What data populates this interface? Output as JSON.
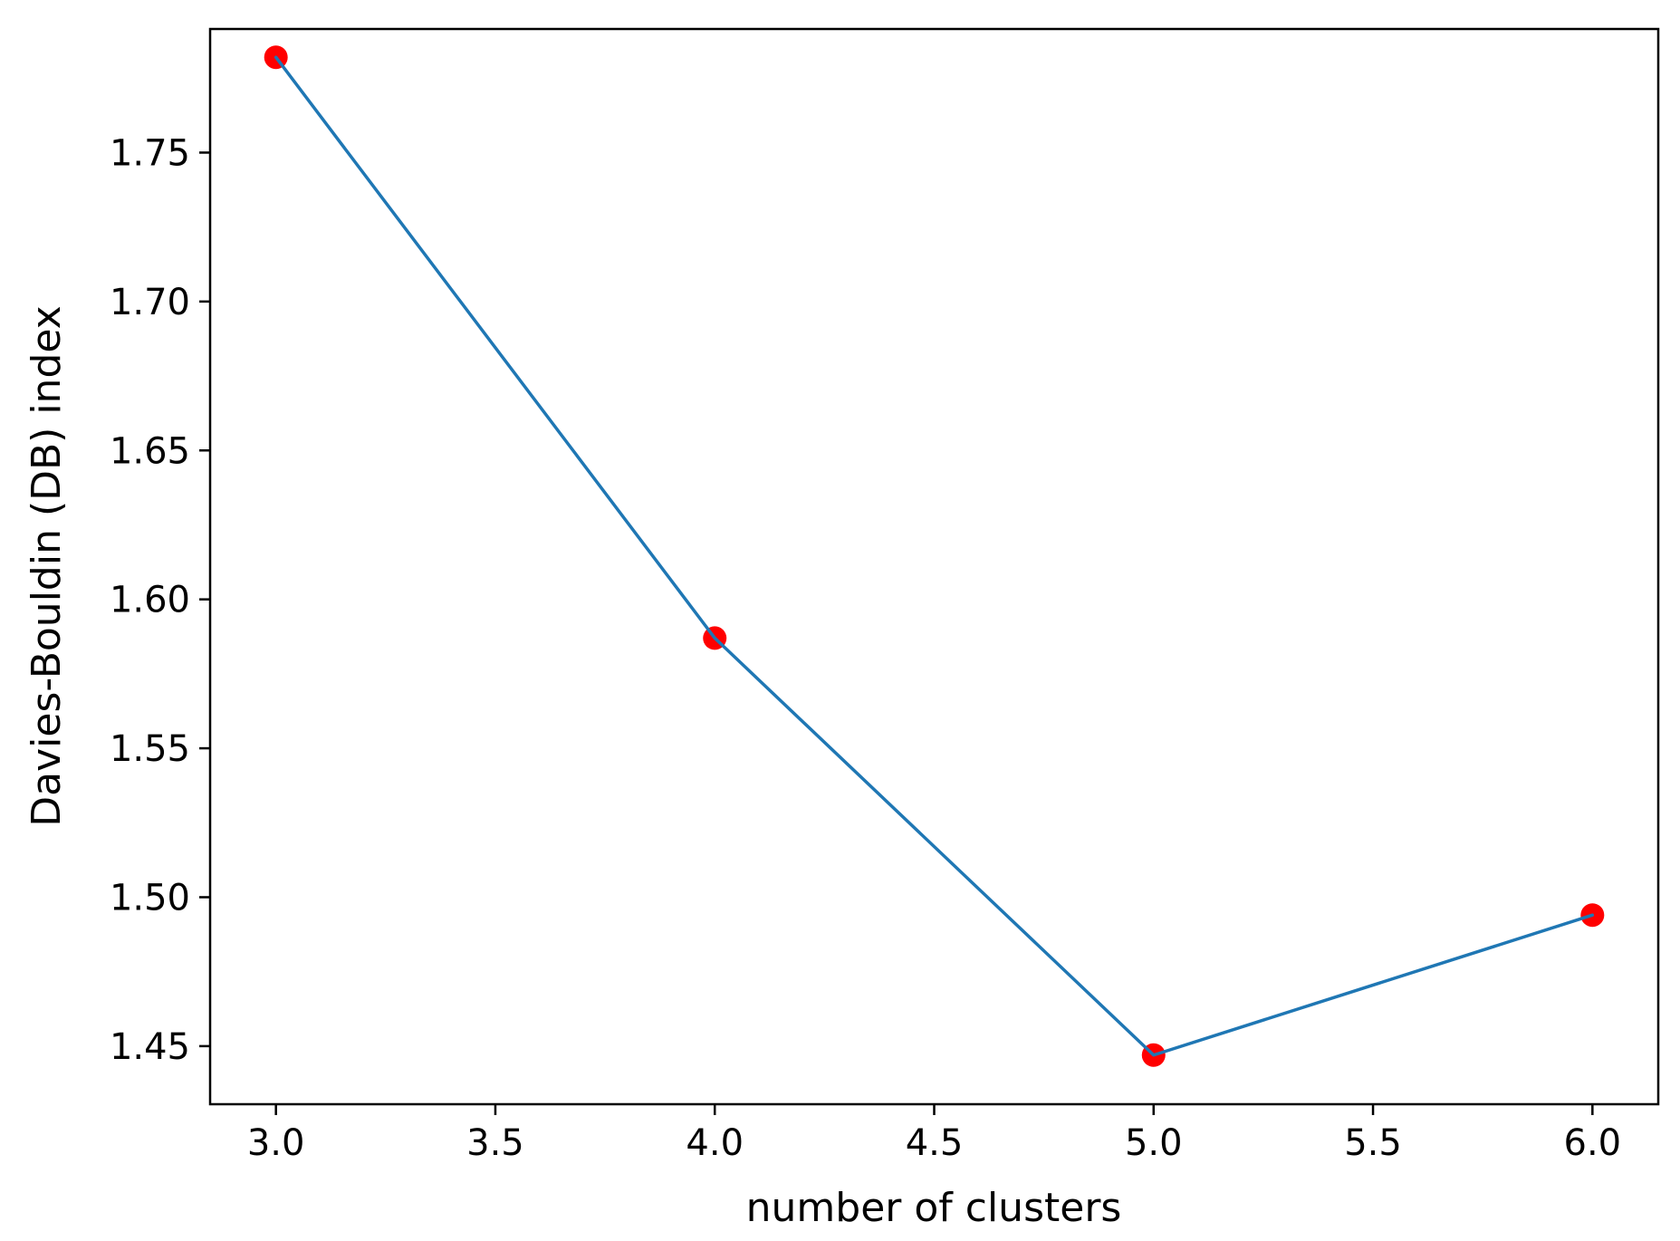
{
  "chart_data": {
    "type": "line",
    "title": "",
    "xlabel": "number of clusters",
    "ylabel": "Davies-Bouldin (DB) index",
    "xlim": [
      2.85,
      6.15
    ],
    "ylim": [
      1.4305,
      1.7915
    ],
    "x_ticks": [
      {
        "value": 3.0,
        "label": "3.0"
      },
      {
        "value": 3.5,
        "label": "3.5"
      },
      {
        "value": 4.0,
        "label": "4.0"
      },
      {
        "value": 4.5,
        "label": "4.5"
      },
      {
        "value": 5.0,
        "label": "5.0"
      },
      {
        "value": 5.5,
        "label": "5.5"
      },
      {
        "value": 6.0,
        "label": "6.0"
      }
    ],
    "y_ticks": [
      {
        "value": 1.45,
        "label": "1.45"
      },
      {
        "value": 1.5,
        "label": "1.50"
      },
      {
        "value": 1.55,
        "label": "1.55"
      },
      {
        "value": 1.6,
        "label": "1.60"
      },
      {
        "value": 1.65,
        "label": "1.65"
      },
      {
        "value": 1.7,
        "label": "1.70"
      },
      {
        "value": 1.75,
        "label": "1.75"
      }
    ],
    "grid": false,
    "legend": "none",
    "series": [
      {
        "x": [
          3,
          4,
          5,
          6
        ],
        "y": [
          1.782,
          1.587,
          1.447,
          1.494
        ],
        "line_color": "#1f77b4",
        "marker_color": "#ff0000"
      }
    ]
  }
}
